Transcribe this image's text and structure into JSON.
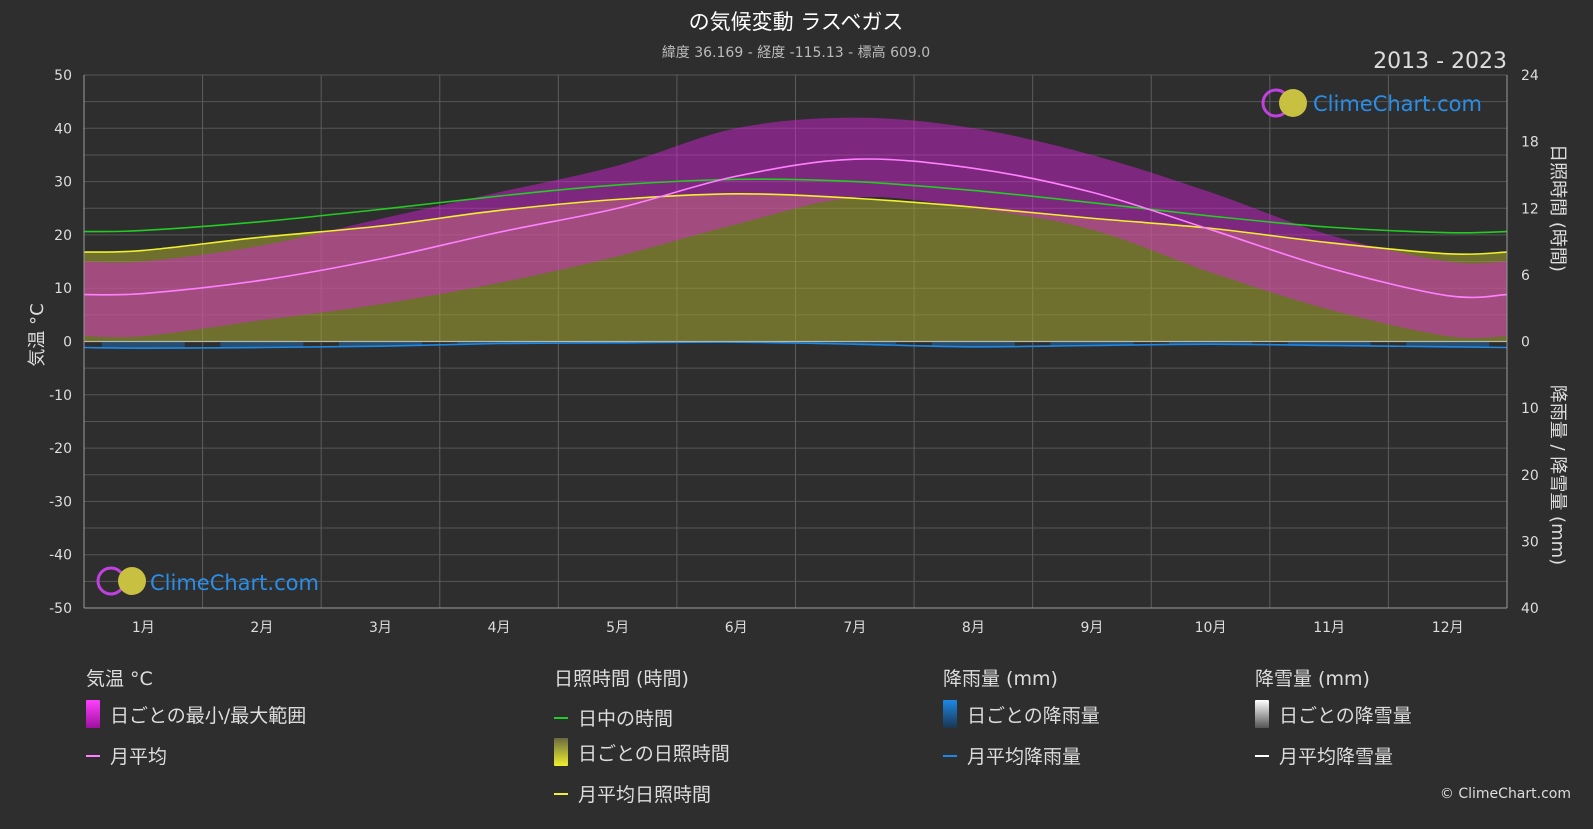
{
  "title": "の気候変動 ラスベガス",
  "subtitle": "緯度 36.169 - 経度 -115.13 - 標高 609.0",
  "period": "2013 - 2023",
  "watermark": "ClimeChart.com",
  "copyright": "© ClimeChart.com",
  "axes": {
    "left_label": "気温 °C",
    "right_top_label": "日照時間 (時間)",
    "right_bottom_label": "降雨量 / 降雪量 (mm)"
  },
  "legend": {
    "temperature": {
      "header": "気温 °C",
      "range_label": "日ごとの最小/最大範囲",
      "avg_label": "月平均"
    },
    "sunshine": {
      "header": "日照時間 (時間)",
      "daylight_label": "日中の時間",
      "daily_label": "日ごとの日照時間",
      "avg_label": "月平均日照時間"
    },
    "rain": {
      "header": "降雨量 (mm)",
      "daily_label": "日ごとの降雨量",
      "avg_label": "月平均降雨量"
    },
    "snow": {
      "header": "降雪量 (mm)",
      "daily_label": "日ごとの降雪量",
      "avg_label": "月平均降雪量"
    }
  },
  "colors": {
    "background": "#2e2e2e",
    "temp_range": "#e020e0",
    "temp_avg": "#ff80ff",
    "daylight": "#22cc22",
    "sunshine_fill": "#a8a830",
    "sunshine_avg": "#f0f030",
    "rain": "#1e88e5",
    "snow": "#ffffff",
    "grid": "#555555",
    "text": "#dddddd",
    "brand_blue": "#2a8ee8"
  },
  "chart_data": {
    "type": "area",
    "months": [
      "1月",
      "2月",
      "3月",
      "4月",
      "5月",
      "6月",
      "7月",
      "8月",
      "9月",
      "10月",
      "11月",
      "12月"
    ],
    "temp_axis": {
      "ylim": [
        -50,
        50
      ],
      "ticks": [
        50,
        40,
        30,
        20,
        10,
        0,
        -10,
        -20,
        -30,
        -40,
        -50
      ]
    },
    "sunshine_axis": {
      "ylim": [
        0,
        24
      ],
      "ticks": [
        24,
        18,
        12,
        6,
        0
      ]
    },
    "precip_axis": {
      "ylim": [
        0,
        40
      ],
      "ticks": [
        0,
        10,
        20,
        30,
        40
      ]
    },
    "series": [
      {
        "name": "月平均",
        "unit": "°C",
        "values": [
          9.0,
          11.5,
          15.5,
          20.5,
          25.0,
          31.0,
          34.2,
          32.5,
          28.0,
          21.0,
          13.8,
          8.6
        ]
      },
      {
        "name": "日中の時間",
        "unit": "h",
        "values": [
          10.0,
          10.8,
          11.9,
          13.1,
          14.1,
          14.6,
          14.4,
          13.6,
          12.5,
          11.3,
          10.3,
          9.8
        ]
      },
      {
        "name": "月平均日照時間",
        "unit": "h",
        "values": [
          8.2,
          9.4,
          10.4,
          11.8,
          12.8,
          13.3,
          12.9,
          12.1,
          11.1,
          10.2,
          8.9,
          7.9
        ]
      },
      {
        "name": "月平均降雨量",
        "unit": "mm",
        "values": [
          1.0,
          0.9,
          0.7,
          0.3,
          0.2,
          0.1,
          0.4,
          0.8,
          0.6,
          0.4,
          0.6,
          0.8
        ]
      },
      {
        "name": "月平均降雪量",
        "unit": "mm",
        "values": [
          0,
          0,
          0,
          0,
          0,
          0,
          0,
          0,
          0,
          0,
          0,
          0
        ]
      }
    ],
    "daily_temp_range": {
      "min": [
        1,
        4,
        7,
        11,
        16,
        22,
        27,
        25,
        21,
        13,
        6,
        1
      ],
      "max": [
        15,
        18,
        23,
        28,
        33,
        40,
        42,
        40,
        35,
        28,
        20,
        15
      ]
    }
  }
}
